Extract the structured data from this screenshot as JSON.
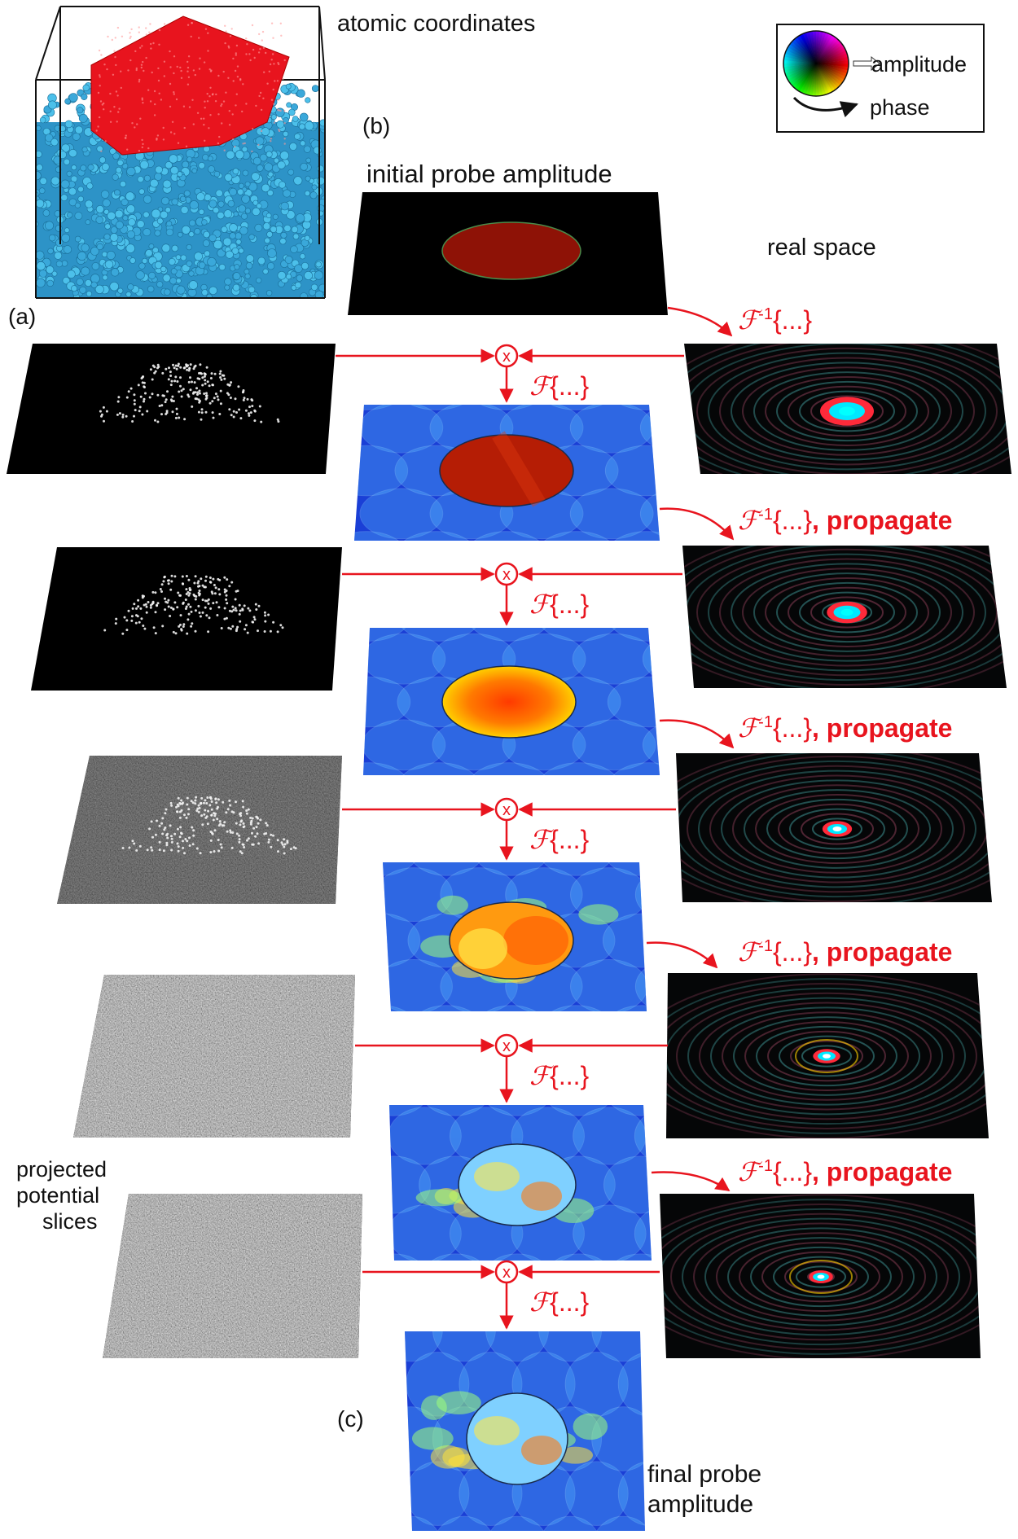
{
  "labels": {
    "atomic_coordinates": "atomic coordinates",
    "panel_a": "(a)",
    "panel_b": "(b)",
    "panel_c": "(c)",
    "initial_probe_1": "initial probe amplitude",
    "real_space": "real space",
    "projected_1": "projected",
    "projected_2": "potential",
    "projected_3": "slices",
    "final_1": "final probe",
    "final_2": "amplitude"
  },
  "legend": {
    "amplitude": "amplitude",
    "phase": "phase"
  },
  "operators": {
    "inverse_symbol": "ℱ",
    "inverse_exponent": "-1",
    "inverse_braces": "{...}",
    "propagate": ", propagate",
    "forward_symbol": "ℱ",
    "forward_braces": "{...}",
    "multiply": "x"
  },
  "colors": {
    "arrow": "#e8141e",
    "crystal": "#e8141e",
    "substrate": "#3ab0e0",
    "reciprocal_bg": "#1a3fd6"
  }
}
